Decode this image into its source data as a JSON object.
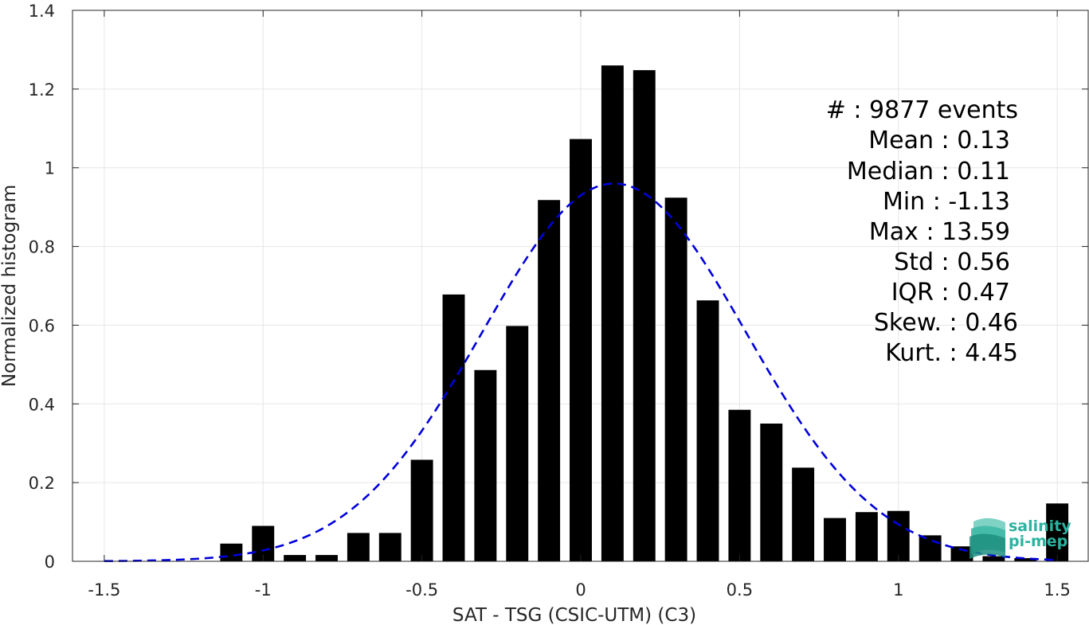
{
  "chart_data": {
    "type": "bar",
    "xlabel": "SAT - TSG (CSIC-UTM) (C3)",
    "ylabel": "Normalized histogram",
    "xlim": [
      -1.6,
      1.6
    ],
    "ylim": [
      0,
      1.4
    ],
    "xticks": [
      -1.5,
      -1,
      -0.5,
      0,
      0.5,
      1,
      1.5
    ],
    "xtick_labels": [
      "-1.5",
      "-1",
      "-0.5",
      "0",
      "0.5",
      "1",
      "1.5"
    ],
    "yticks": [
      0,
      0.2,
      0.4,
      0.6,
      0.8,
      1.0,
      1.2,
      1.4
    ],
    "ytick_labels": [
      "0",
      "0.2",
      "0.4",
      "0.6",
      "0.8",
      "1",
      "1.2",
      "1.4"
    ],
    "grid": true,
    "bar_color": "#000000",
    "bar_width": 0.07,
    "bars": {
      "x": [
        -1.1,
        -1.0,
        -0.9,
        -0.8,
        -0.7,
        -0.6,
        -0.5,
        -0.4,
        -0.3,
        -0.2,
        -0.1,
        0.0,
        0.1,
        0.2,
        0.3,
        0.4,
        0.5,
        0.6,
        0.7,
        0.8,
        0.9,
        1.0,
        1.1,
        1.2,
        1.3,
        1.4,
        1.5
      ],
      "values": [
        0.045,
        0.09,
        0.016,
        0.016,
        0.072,
        0.072,
        0.258,
        0.678,
        0.486,
        0.598,
        0.918,
        1.073,
        1.26,
        1.248,
        0.924,
        0.663,
        0.385,
        0.35,
        0.238,
        0.11,
        0.125,
        0.128,
        0.066,
        0.038,
        0.013,
        0.008,
        0.147
      ]
    },
    "fit": {
      "style": "dashed",
      "color": "#0000dd",
      "mean": 0.105,
      "std": 0.415,
      "peak": 0.96,
      "range": [
        -1.5,
        1.5
      ]
    },
    "stats": [
      {
        "label": "#  : 9877 events"
      },
      {
        "label": "Mean : 0.13"
      },
      {
        "label": "Median : 0.11"
      },
      {
        "label": "Min : -1.13"
      },
      {
        "label": "Max : 13.59"
      },
      {
        "label": "Std : 0.56"
      },
      {
        "label": "IQR : 0.47"
      },
      {
        "label": "Skew. : 0.46"
      },
      {
        "label": "Kurt. : 4.45"
      }
    ]
  },
  "logo": {
    "line1": "salinity",
    "line2": "pi-mep",
    "color": "#2bb3a0"
  }
}
